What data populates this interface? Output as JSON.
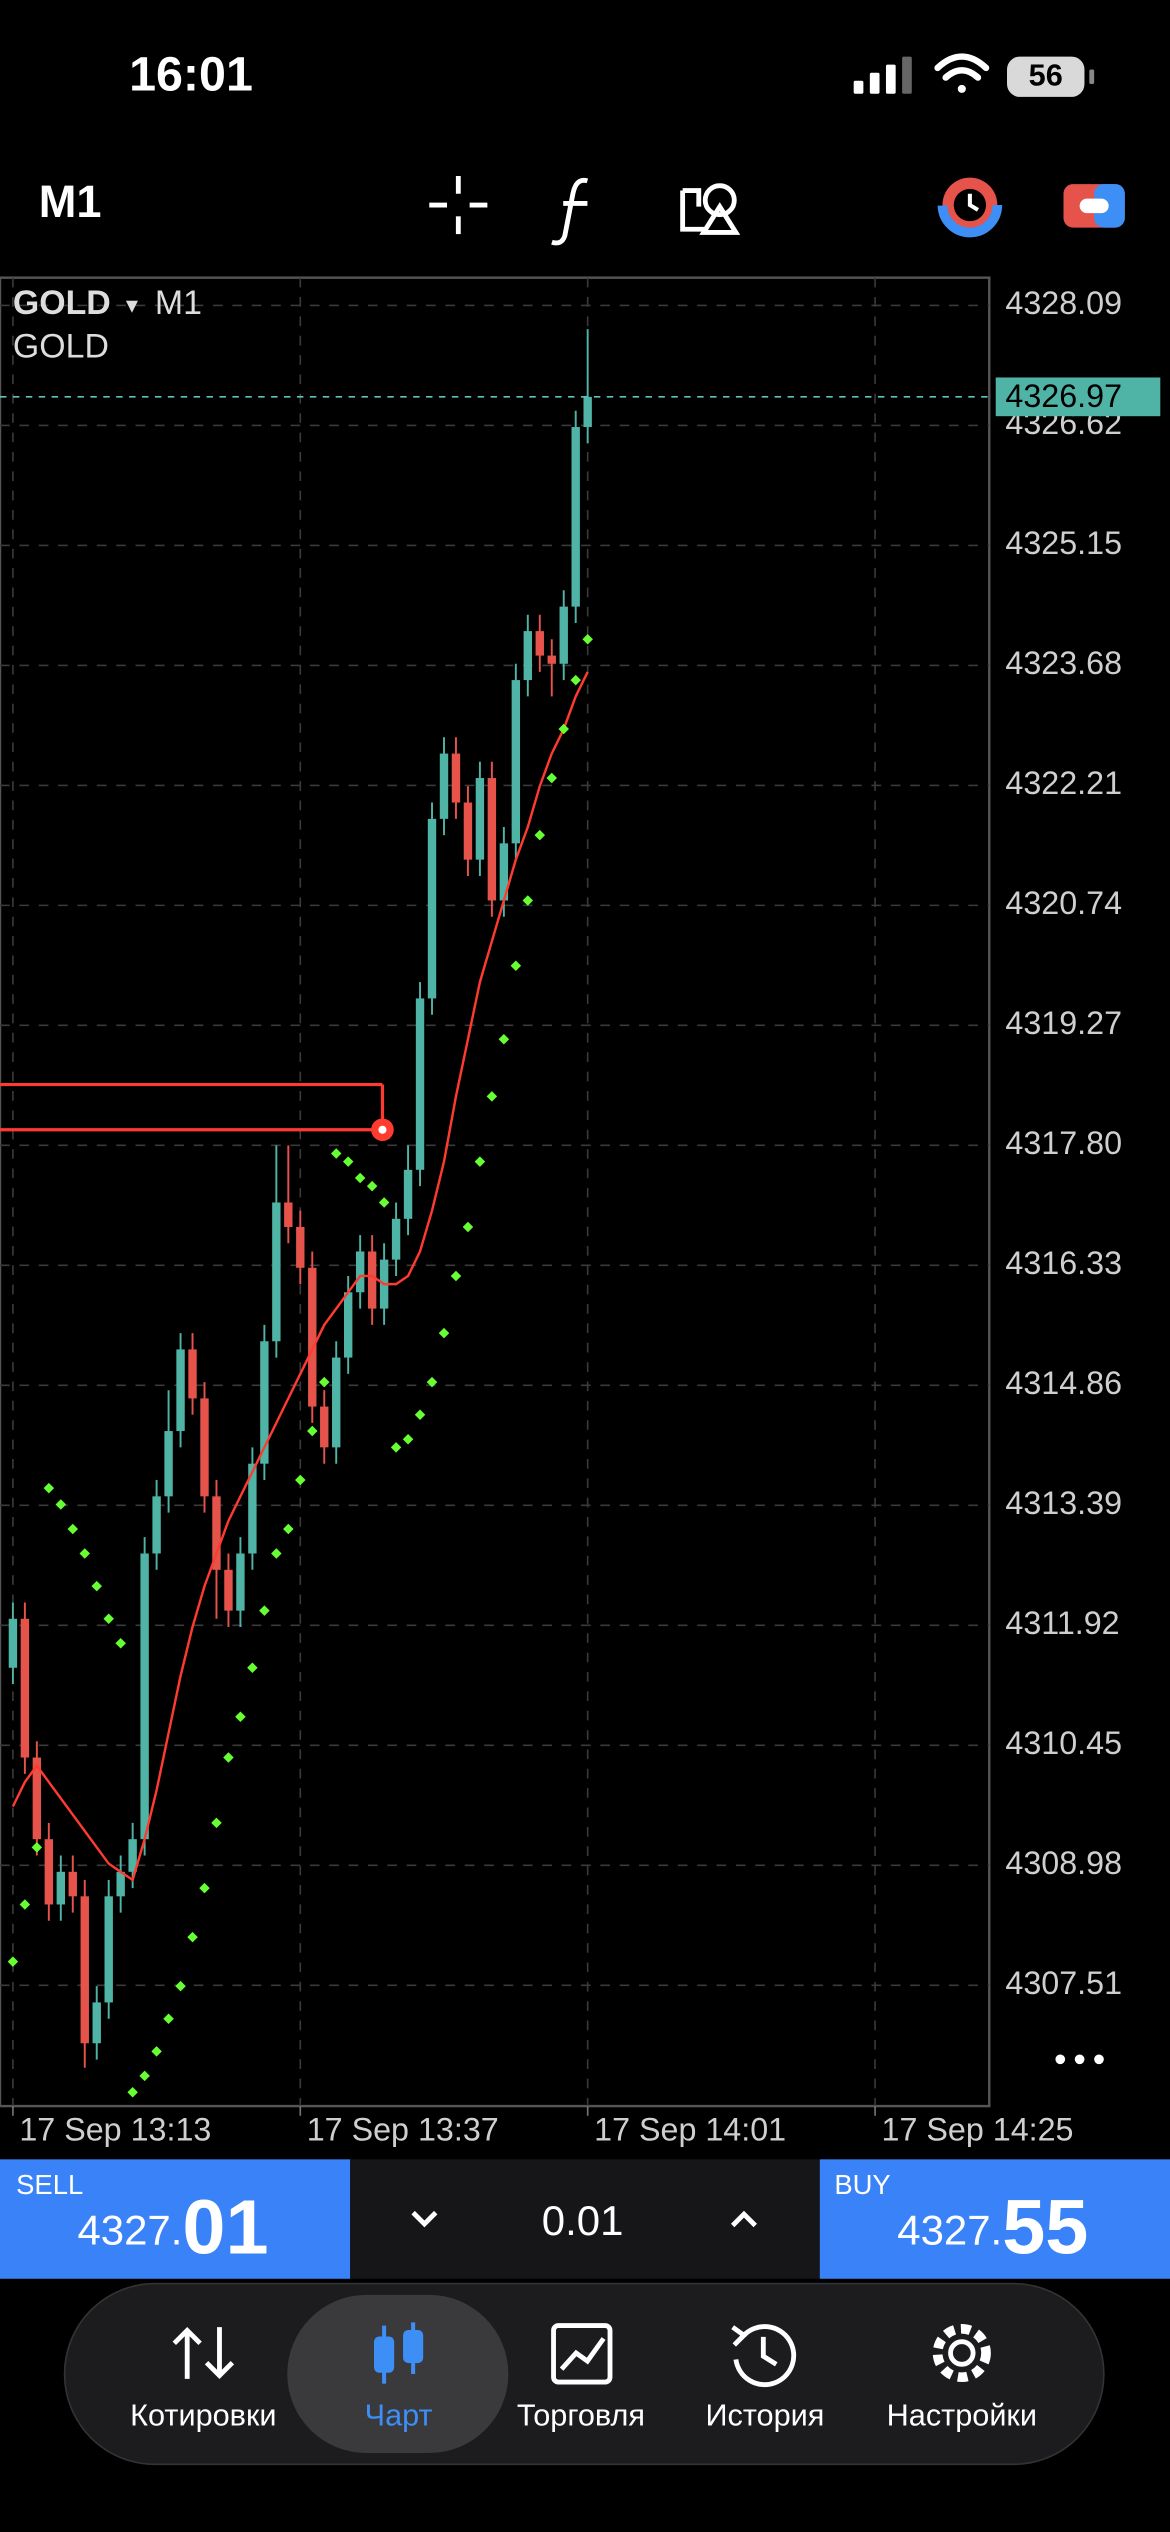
{
  "status_bar": {
    "time": "16:01",
    "battery": "56"
  },
  "toolbar": {
    "timeframe": "M1"
  },
  "chart_data": {
    "type": "candlestick",
    "symbol": "GOLD",
    "timeframe_arrow": "▾",
    "timeframe": "M1",
    "subtitle": "GOLD",
    "up_color": "#4fb3a6",
    "down_color": "#e5534b",
    "grid": true,
    "ylim": [
      4306.03,
      4328.43
    ],
    "yticks": [
      4328.09,
      4326.62,
      4325.15,
      4323.68,
      4322.21,
      4320.74,
      4319.27,
      {
        "value": 4317.8,
        "label": "4317.80"
      },
      4316.33,
      4314.86,
      4313.39,
      4311.92,
      4310.45,
      4308.98,
      4307.51
    ],
    "xticks": [
      "17 Sep 13:13",
      "17 Sep 13:37",
      "17 Sep 14:01",
      "17 Sep 14:25"
    ],
    "current_price": 4326.97,
    "open": [
      4311.4,
      4312.0,
      4310.3,
      4309.3,
      4308.5,
      4308.9,
      4308.6,
      4306.8,
      4307.3,
      4308.6,
      4308.9,
      4309.3,
      4312.8,
      4313.5,
      4314.3,
      4315.3,
      4314.7,
      4313.5,
      4312.6,
      4312.1,
      4312.8,
      4313.9,
      4315.4,
      4317.1,
      4316.8,
      4316.3,
      4314.6,
      4314.1,
      4315.2,
      4316.0,
      4316.5,
      4315.8,
      4316.4,
      4316.9,
      4317.5,
      4319.6,
      4321.8,
      4322.6,
      4322.0,
      4321.3,
      4322.3,
      4320.8,
      4321.5,
      4323.5,
      4324.1,
      4323.8,
      4323.7,
      4324.4,
      4326.6
    ],
    "high": [
      4312.2,
      4312.2,
      4310.5,
      4309.5,
      4309.1,
      4309.1,
      4308.8,
      4307.5,
      4308.8,
      4309.1,
      4309.5,
      4313.0,
      4313.7,
      4314.8,
      4315.5,
      4315.5,
      4314.9,
      4313.7,
      4312.8,
      4313.0,
      4314.1,
      4315.6,
      4317.8,
      4317.8,
      4317.0,
      4316.5,
      4314.8,
      4315.4,
      4316.2,
      4316.7,
      4316.7,
      4316.6,
      4317.1,
      4317.8,
      4319.8,
      4322.0,
      4322.8,
      4322.8,
      4322.2,
      4322.5,
      4322.5,
      4321.7,
      4323.7,
      4324.3,
      4324.3,
      4324.0,
      4324.6,
      4326.8,
      4327.8
    ],
    "low": [
      4311.2,
      4310.1,
      4309.1,
      4308.3,
      4308.3,
      4308.4,
      4306.5,
      4306.6,
      4307.1,
      4308.4,
      4308.7,
      4309.1,
      4312.6,
      4313.3,
      4314.1,
      4314.5,
      4313.3,
      4312.0,
      4311.9,
      4311.9,
      4312.6,
      4313.7,
      4315.2,
      4316.6,
      4316.1,
      4314.4,
      4313.9,
      4313.9,
      4315.0,
      4315.8,
      4315.6,
      4315.6,
      4316.2,
      4316.7,
      4317.3,
      4319.4,
      4321.6,
      4321.8,
      4321.1,
      4321.1,
      4320.6,
      4320.6,
      4321.3,
      4323.3,
      4323.6,
      4323.3,
      4323.5,
      4324.2,
      4326.4
    ],
    "close": [
      4312.0,
      4310.3,
      4309.3,
      4308.5,
      4308.9,
      4308.6,
      4306.8,
      4307.3,
      4308.6,
      4308.9,
      4309.3,
      4312.8,
      4313.5,
      4314.3,
      4315.3,
      4314.7,
      4313.5,
      4312.6,
      4312.1,
      4312.8,
      4313.9,
      4315.4,
      4317.1,
      4316.8,
      4316.3,
      4314.6,
      4314.1,
      4315.2,
      4316.0,
      4316.5,
      4315.8,
      4316.4,
      4316.9,
      4317.5,
      4319.6,
      4321.8,
      4322.6,
      4322.0,
      4321.3,
      4322.3,
      4320.8,
      4321.5,
      4323.5,
      4324.1,
      4323.8,
      4323.7,
      4324.4,
      4326.6,
      4326.97
    ],
    "ma": {
      "color": "#ff3b30",
      "values": [
        4309.7,
        4310.0,
        4310.2,
        4310.0,
        4309.8,
        4309.6,
        4309.4,
        4309.2,
        4309.0,
        4308.9,
        4308.8,
        4309.3,
        4309.9,
        4310.6,
        4311.3,
        4311.9,
        4312.4,
        4312.8,
        4313.2,
        4313.5,
        4313.8,
        4314.1,
        4314.4,
        4314.7,
        4315.0,
        4315.3,
        4315.6,
        4315.8,
        4316.0,
        4316.2,
        4316.2,
        4316.1,
        4316.1,
        4316.2,
        4316.5,
        4317.0,
        4317.6,
        4318.4,
        4319.1,
        4319.8,
        4320.3,
        4320.8,
        4321.3,
        4321.7,
        4322.2,
        4322.6,
        4322.9,
        4323.3,
        4323.6
      ]
    },
    "sar": {
      "color": "#66ff33",
      "values": [
        4307.8,
        4308.5,
        4309.2,
        4313.6,
        4313.4,
        4313.1,
        4312.8,
        4312.4,
        4312.0,
        4311.7,
        4306.2,
        4306.4,
        4306.7,
        4307.1,
        4307.5,
        4308.1,
        4308.7,
        4309.5,
        4310.3,
        4310.8,
        4311.4,
        4312.1,
        4312.8,
        4313.1,
        4313.7,
        4314.3,
        4314.9,
        4317.7,
        4317.6,
        4317.4,
        4317.3,
        4317.1,
        4314.1,
        4314.2,
        4314.5,
        4314.9,
        4315.5,
        4316.2,
        4316.8,
        4317.6,
        4318.4,
        4319.1,
        4320.0,
        4320.8,
        4321.6,
        4322.3,
        4322.9,
        4323.5,
        4324.0
      ]
    }
  },
  "trade_bar": {
    "sell_label": "SELL",
    "sell_price_main": "4327.",
    "sell_price_big": "01",
    "lot": "0.01",
    "buy_label": "BUY",
    "buy_price_main": "4327.",
    "buy_price_big": "55"
  },
  "nav": {
    "items": [
      "Котировки",
      "Чарт",
      "Торговля",
      "История",
      "Настройки"
    ]
  }
}
